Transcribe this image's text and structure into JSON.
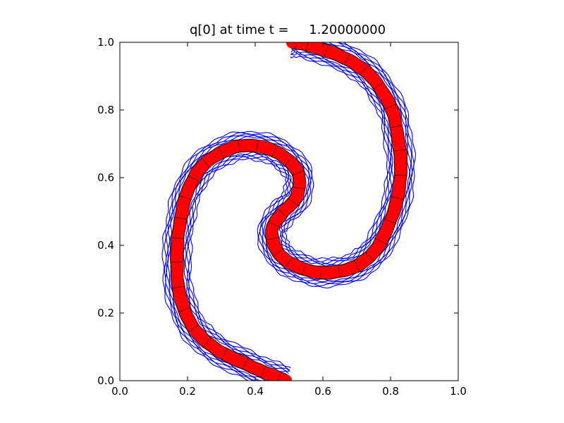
{
  "chart_data": {
    "type": "line",
    "title": "q[0] at time t =     1.20000000",
    "xlabel": "",
    "ylabel": "",
    "xlim": [
      0.0,
      1.0
    ],
    "ylim": [
      0.0,
      1.0
    ],
    "aspect": "equal",
    "grid": false,
    "legend": false,
    "x_ticks": [
      "0.0",
      "0.2",
      "0.4",
      "0.6",
      "0.8",
      "1.0"
    ],
    "y_ticks": [
      "0.0",
      "0.2",
      "0.4",
      "0.6",
      "0.8",
      "1.0"
    ],
    "colors": {
      "filled_curve": "#ff0000",
      "contours": "#0000ff",
      "mesh_edges": "#000000",
      "axes": "#000000"
    },
    "series": [
      {
        "role": "filled-band",
        "color": "#ff0000",
        "points": [
          [
            0.49,
            0.0
          ],
          [
            0.44,
            0.02
          ],
          [
            0.37,
            0.05
          ],
          [
            0.29,
            0.09
          ],
          [
            0.23,
            0.14
          ],
          [
            0.19,
            0.21
          ],
          [
            0.17,
            0.3
          ],
          [
            0.17,
            0.4
          ],
          [
            0.18,
            0.48
          ],
          [
            0.2,
            0.56
          ],
          [
            0.24,
            0.63
          ],
          [
            0.3,
            0.675
          ],
          [
            0.37,
            0.695
          ],
          [
            0.44,
            0.685
          ],
          [
            0.5,
            0.65
          ],
          [
            0.53,
            0.6
          ],
          [
            0.52,
            0.54
          ],
          [
            0.48,
            0.495
          ],
          [
            0.45,
            0.45
          ],
          [
            0.46,
            0.39
          ],
          [
            0.5,
            0.35
          ],
          [
            0.56,
            0.325
          ],
          [
            0.63,
            0.32
          ],
          [
            0.7,
            0.34
          ],
          [
            0.75,
            0.38
          ],
          [
            0.79,
            0.45
          ],
          [
            0.82,
            0.54
          ],
          [
            0.83,
            0.63
          ],
          [
            0.82,
            0.73
          ],
          [
            0.8,
            0.81
          ],
          [
            0.75,
            0.89
          ],
          [
            0.69,
            0.94
          ],
          [
            0.61,
            0.975
          ],
          [
            0.54,
            0.995
          ],
          [
            0.51,
            1.0
          ]
        ]
      }
    ]
  }
}
